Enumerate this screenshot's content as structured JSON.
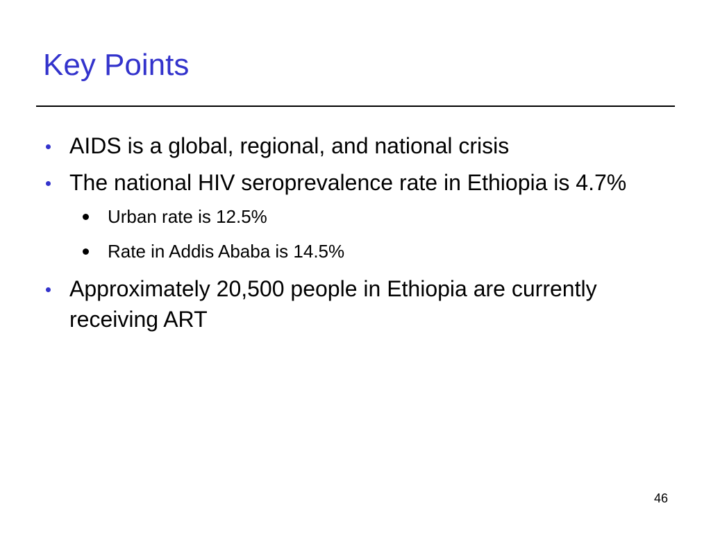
{
  "slide": {
    "title": "Key Points",
    "bullets": [
      {
        "text": "AIDS is a global, regional, and national crisis",
        "sub": []
      },
      {
        "text": "The national HIV seroprevalence rate in Ethiopia is 4.7%",
        "sub": [
          "Urban rate is 12.5%",
          "Rate in Addis Ababa is 14.5%"
        ]
      },
      {
        "text": "Approximately 20,500 people in Ethiopia are currently receiving ART",
        "sub": []
      }
    ],
    "page_number": "46"
  },
  "colors": {
    "title": "#3333cc",
    "bullet_marker": "#3333cc",
    "sub_bullet_marker": "#000000",
    "text": "#000000",
    "background": "#ffffff"
  }
}
